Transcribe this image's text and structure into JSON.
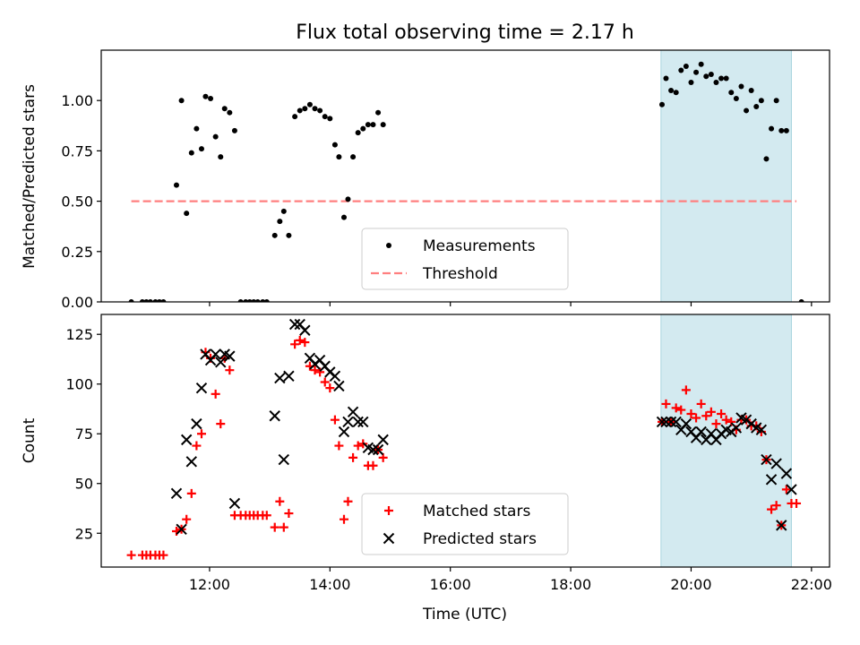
{
  "figure": {
    "title": "Flux total observing time = 2.17 h",
    "xlabel": "Time (UTC)"
  },
  "colors": {
    "highlight": "#d3eaf0",
    "highlight_edge": "#a8d4df",
    "threshold": "#ff7f7f",
    "matched": "#ff0000",
    "predicted": "#000000",
    "measurement": "#000000"
  },
  "chart_data": [
    {
      "type": "scatter",
      "ylabel": "Matched/Predicted stars",
      "xlim_hours": [
        10.2,
        22.3
      ],
      "ylim": [
        0,
        1.25
      ],
      "yticks": [
        0.0,
        0.25,
        0.5,
        0.75,
        1.0
      ],
      "ytick_labels": [
        "0.00",
        "0.25",
        "0.50",
        "0.75",
        "1.00"
      ],
      "xticks": [
        "12:00",
        "14:00",
        "16:00",
        "18:00",
        "20:00",
        "22:00"
      ],
      "highlight_span": [
        "19:30",
        "21:40"
      ],
      "threshold": {
        "name": "Threshold",
        "y": 0.5,
        "x_range": [
          "10:42",
          "21:45"
        ]
      },
      "legend": {
        "position": "lower-center",
        "entries": [
          "Measurements",
          "Threshold"
        ]
      },
      "series": [
        {
          "name": "Measurements",
          "marker": "dot",
          "points": [
            [
              "10:42",
              0.0
            ],
            [
              "10:53",
              0.0
            ],
            [
              "10:57",
              0.0
            ],
            [
              "11:01",
              0.0
            ],
            [
              "11:06",
              0.0
            ],
            [
              "11:10",
              0.0
            ],
            [
              "11:14",
              0.0
            ],
            [
              "11:27",
              0.58
            ],
            [
              "11:32",
              1.0
            ],
            [
              "11:37",
              0.44
            ],
            [
              "11:42",
              0.74
            ],
            [
              "11:47",
              0.86
            ],
            [
              "11:52",
              0.76
            ],
            [
              "11:56",
              1.02
            ],
            [
              "12:01",
              1.01
            ],
            [
              "12:06",
              0.82
            ],
            [
              "12:11",
              0.72
            ],
            [
              "12:15",
              0.96
            ],
            [
              "12:20",
              0.94
            ],
            [
              "12:25",
              0.85
            ],
            [
              "12:31",
              0.0
            ],
            [
              "12:36",
              0.0
            ],
            [
              "12:40",
              0.0
            ],
            [
              "12:44",
              0.0
            ],
            [
              "12:48",
              0.0
            ],
            [
              "12:53",
              0.0
            ],
            [
              "12:57",
              0.0
            ],
            [
              "13:05",
              0.33
            ],
            [
              "13:10",
              0.4
            ],
            [
              "13:14",
              0.45
            ],
            [
              "13:19",
              0.33
            ],
            [
              "13:25",
              0.92
            ],
            [
              "13:30",
              0.95
            ],
            [
              "13:35",
              0.96
            ],
            [
              "13:40",
              0.98
            ],
            [
              "13:45",
              0.96
            ],
            [
              "13:50",
              0.95
            ],
            [
              "13:55",
              0.92
            ],
            [
              "14:00",
              0.91
            ],
            [
              "14:05",
              0.78
            ],
            [
              "14:09",
              0.72
            ],
            [
              "14:14",
              0.42
            ],
            [
              "14:18",
              0.51
            ],
            [
              "14:23",
              0.72
            ],
            [
              "14:28",
              0.84
            ],
            [
              "14:33",
              0.86
            ],
            [
              "14:38",
              0.88
            ],
            [
              "14:43",
              0.88
            ],
            [
              "14:48",
              0.94
            ],
            [
              "14:53",
              0.88
            ],
            [
              "19:31",
              0.98
            ],
            [
              "19:35",
              1.11
            ],
            [
              "19:40",
              1.05
            ],
            [
              "19:45",
              1.04
            ],
            [
              "19:50",
              1.15
            ],
            [
              "19:55",
              1.17
            ],
            [
              "20:00",
              1.09
            ],
            [
              "20:05",
              1.14
            ],
            [
              "20:10",
              1.18
            ],
            [
              "20:15",
              1.12
            ],
            [
              "20:20",
              1.13
            ],
            [
              "20:25",
              1.09
            ],
            [
              "20:30",
              1.11
            ],
            [
              "20:35",
              1.11
            ],
            [
              "20:40",
              1.04
            ],
            [
              "20:45",
              1.01
            ],
            [
              "20:50",
              1.07
            ],
            [
              "20:55",
              0.95
            ],
            [
              "21:00",
              1.05
            ],
            [
              "21:05",
              0.97
            ],
            [
              "21:10",
              1.0
            ],
            [
              "21:15",
              0.71
            ],
            [
              "21:20",
              0.86
            ],
            [
              "21:25",
              1.0
            ],
            [
              "21:30",
              0.85
            ],
            [
              "21:35",
              0.85
            ],
            [
              "21:50",
              0.0
            ]
          ]
        }
      ]
    },
    {
      "type": "scatter",
      "ylabel": "Count",
      "xlabel": "Time (UTC)",
      "xlim_hours": [
        10.2,
        22.3
      ],
      "ylim": [
        8,
        135
      ],
      "yticks": [
        25,
        50,
        75,
        100,
        125
      ],
      "ytick_labels": [
        "25",
        "50",
        "75",
        "100",
        "125"
      ],
      "xticks": [
        "12:00",
        "14:00",
        "16:00",
        "18:00",
        "20:00",
        "22:00"
      ],
      "highlight_span": [
        "19:30",
        "21:40"
      ],
      "legend": {
        "position": "lower-center",
        "entries": [
          "Matched stars",
          "Predicted stars"
        ]
      },
      "series": [
        {
          "name": "Matched stars",
          "marker": "plus",
          "points": [
            [
              "10:42",
              14
            ],
            [
              "10:53",
              14
            ],
            [
              "10:57",
              14
            ],
            [
              "11:01",
              14
            ],
            [
              "11:06",
              14
            ],
            [
              "11:10",
              14
            ],
            [
              "11:14",
              14
            ],
            [
              "11:27",
              26
            ],
            [
              "11:32",
              27
            ],
            [
              "11:37",
              32
            ],
            [
              "11:42",
              45
            ],
            [
              "11:47",
              69
            ],
            [
              "11:52",
              75
            ],
            [
              "11:56",
              116
            ],
            [
              "12:01",
              113
            ],
            [
              "12:06",
              95
            ],
            [
              "12:11",
              80
            ],
            [
              "12:15",
              113
            ],
            [
              "12:20",
              107
            ],
            [
              "12:25",
              34
            ],
            [
              "12:31",
              34
            ],
            [
              "12:36",
              34
            ],
            [
              "12:40",
              34
            ],
            [
              "12:44",
              34
            ],
            [
              "12:48",
              34
            ],
            [
              "12:53",
              34
            ],
            [
              "12:57",
              34
            ],
            [
              "13:05",
              28
            ],
            [
              "13:10",
              41
            ],
            [
              "13:14",
              28
            ],
            [
              "13:19",
              35
            ],
            [
              "13:25",
              120
            ],
            [
              "13:30",
              122
            ],
            [
              "13:35",
              121
            ],
            [
              "13:40",
              109
            ],
            [
              "13:45",
              107
            ],
            [
              "13:50",
              106
            ],
            [
              "13:55",
              101
            ],
            [
              "14:00",
              98
            ],
            [
              "14:05",
              82
            ],
            [
              "14:09",
              69
            ],
            [
              "14:14",
              32
            ],
            [
              "14:18",
              41
            ],
            [
              "14:23",
              63
            ],
            [
              "14:28",
              69
            ],
            [
              "14:33",
              70
            ],
            [
              "14:38",
              59
            ],
            [
              "14:43",
              59
            ],
            [
              "14:48",
              67
            ],
            [
              "14:53",
              63
            ],
            [
              "19:31",
              81
            ],
            [
              "19:35",
              90
            ],
            [
              "19:40",
              81
            ],
            [
              "19:45",
              88
            ],
            [
              "19:50",
              87
            ],
            [
              "19:55",
              97
            ],
            [
              "20:00",
              85
            ],
            [
              "20:05",
              83
            ],
            [
              "20:10",
              90
            ],
            [
              "20:15",
              84
            ],
            [
              "20:20",
              86
            ],
            [
              "20:25",
              80
            ],
            [
              "20:30",
              85
            ],
            [
              "20:35",
              82
            ],
            [
              "20:40",
              81
            ],
            [
              "20:45",
              77
            ],
            [
              "20:50",
              82
            ],
            [
              "20:55",
              82
            ],
            [
              "21:00",
              79
            ],
            [
              "21:05",
              79
            ],
            [
              "21:10",
              76
            ],
            [
              "21:15",
              62
            ],
            [
              "21:20",
              37
            ],
            [
              "21:25",
              39
            ],
            [
              "21:30",
              29
            ],
            [
              "21:35",
              47
            ],
            [
              "21:40",
              40
            ],
            [
              "21:45",
              40
            ]
          ]
        },
        {
          "name": "Predicted stars",
          "marker": "x",
          "points": [
            [
              "11:27",
              45
            ],
            [
              "11:32",
              27
            ],
            [
              "11:37",
              72
            ],
            [
              "11:42",
              61
            ],
            [
              "11:47",
              80
            ],
            [
              "11:52",
              98
            ],
            [
              "11:56",
              115
            ],
            [
              "12:01",
              112
            ],
            [
              "12:06",
              115
            ],
            [
              "12:11",
              111
            ],
            [
              "12:15",
              115
            ],
            [
              "12:20",
              114
            ],
            [
              "12:25",
              40
            ],
            [
              "13:05",
              84
            ],
            [
              "13:10",
              103
            ],
            [
              "13:14",
              62
            ],
            [
              "13:19",
              104
            ],
            [
              "13:25",
              130
            ],
            [
              "13:30",
              130
            ],
            [
              "13:35",
              127
            ],
            [
              "13:40",
              113
            ],
            [
              "13:45",
              110
            ],
            [
              "13:50",
              112
            ],
            [
              "13:55",
              109
            ],
            [
              "14:00",
              106
            ],
            [
              "14:05",
              104
            ],
            [
              "14:09",
              99
            ],
            [
              "14:14",
              76
            ],
            [
              "14:18",
              81
            ],
            [
              "14:23",
              86
            ],
            [
              "14:28",
              81
            ],
            [
              "14:33",
              81
            ],
            [
              "14:38",
              68
            ],
            [
              "14:43",
              67
            ],
            [
              "14:48",
              67
            ],
            [
              "14:53",
              72
            ],
            [
              "19:31",
              81
            ],
            [
              "19:35",
              81
            ],
            [
              "19:40",
              81
            ],
            [
              "19:45",
              81
            ],
            [
              "19:50",
              77
            ],
            [
              "19:55",
              80
            ],
            [
              "20:00",
              76
            ],
            [
              "20:05",
              73
            ],
            [
              "20:10",
              76
            ],
            [
              "20:15",
              72
            ],
            [
              "20:20",
              75
            ],
            [
              "20:25",
              72
            ],
            [
              "20:30",
              75
            ],
            [
              "20:35",
              77
            ],
            [
              "20:40",
              76
            ],
            [
              "20:45",
              78
            ],
            [
              "20:50",
              83
            ],
            [
              "20:55",
              82
            ],
            [
              "21:00",
              80
            ],
            [
              "21:05",
              78
            ],
            [
              "21:10",
              77
            ],
            [
              "21:15",
              62
            ],
            [
              "21:20",
              52
            ],
            [
              "21:25",
              60
            ],
            [
              "21:30",
              29
            ],
            [
              "21:35",
              55
            ],
            [
              "21:40",
              47
            ]
          ]
        }
      ]
    }
  ]
}
